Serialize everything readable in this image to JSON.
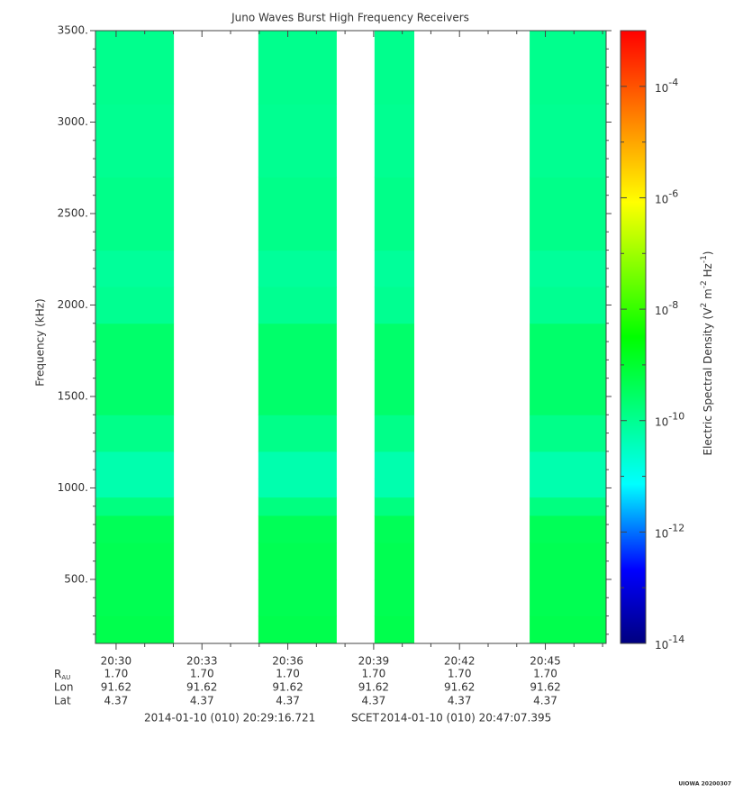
{
  "chart_data": {
    "type": "spectrogram",
    "title": "Juno Waves Burst High Frequency Receivers",
    "ylabel": "Frequency (kHz)",
    "zlabel": "Electric Spectral Density (V2 m-2 Hz-1)",
    "xlim": [
      1229.279,
      1247.123
    ],
    "xticks": [
      {
        "value": 1230,
        "label": "20:30"
      },
      {
        "value": 1233,
        "label": "20:33"
      },
      {
        "value": 1236,
        "label": "20:36"
      },
      {
        "value": 1239,
        "label": "20:39"
      },
      {
        "value": 1242,
        "label": "20:42"
      },
      {
        "value": 1245,
        "label": "20:45"
      }
    ],
    "xminor_ticks": [
      1231,
      1232,
      1234,
      1235,
      1237,
      1238,
      1240,
      1241,
      1243,
      1244,
      1246,
      1247
    ],
    "ylim": [
      150,
      3500
    ],
    "yticks": [
      {
        "value": 500,
        "label": "500."
      },
      {
        "value": 1000,
        "label": "1000."
      },
      {
        "value": 1500,
        "label": "1500."
      },
      {
        "value": 2000,
        "label": "2000."
      },
      {
        "value": 2500,
        "label": "2500."
      },
      {
        "value": 3000,
        "label": "3000."
      },
      {
        "value": 3500,
        "label": "3500."
      }
    ],
    "yminor_ticks": [
      200,
      300,
      400,
      600,
      700,
      800,
      900,
      1100,
      1200,
      1300,
      1400,
      1600,
      1700,
      1800,
      1900,
      2100,
      2200,
      2300,
      2400,
      2600,
      2700,
      2800,
      2900,
      3100,
      3200,
      3300,
      3400
    ],
    "zscale": "log",
    "zlim": [
      1e-14,
      0.001
    ],
    "zticks": [
      {
        "value": 1e-14,
        "label": "10-14"
      },
      {
        "value": 1e-12,
        "label": "10-12"
      },
      {
        "value": 1e-10,
        "label": "10-10"
      },
      {
        "value": 1e-08,
        "label": "10-8"
      },
      {
        "value": 1e-06,
        "label": "10-6"
      },
      {
        "value": 0.0001,
        "label": "10-4"
      }
    ],
    "zminor_ticks": [
      1e-13,
      1e-11,
      1e-09,
      1e-07,
      1e-05,
      0.001
    ],
    "colorscale": [
      [
        0,
        "#00007f"
      ],
      [
        0.12,
        "#0000ff"
      ],
      [
        0.26,
        "#00ffff"
      ],
      [
        0.5,
        "#00ff00"
      ],
      [
        0.72,
        "#ffff00"
      ],
      [
        1,
        "#ff0000"
      ]
    ],
    "segments": [
      [
        1229.279,
        1232.02
      ],
      [
        1234.97,
        1237.71
      ],
      [
        1239.03,
        1240.42
      ],
      [
        1244.45,
        1247.123
      ]
    ],
    "bins": [
      150,
      300,
      500,
      700,
      850,
      950,
      1050,
      1200,
      1400,
      1700,
      1900,
      2100,
      2300,
      2700,
      3100,
      3500
    ],
    "z": [
      5e-10,
      4.5e-10,
      4.5e-10,
      4e-10,
      1.5e-10,
      5e-11,
      5e-11,
      1.2e-10,
      2.5e-10,
      2.5e-10,
      1e-10,
      8e-11,
      1.2e-10,
      1e-10,
      1.1e-10
    ],
    "ephemeris": [
      {
        "label": "RAU",
        "values": [
          "1.70",
          "1.70",
          "1.70",
          "1.70",
          "1.70",
          "1.70"
        ]
      },
      {
        "label": "Lon",
        "values": [
          "91.62",
          "91.62",
          "91.62",
          "91.62",
          "91.62",
          "91.62"
        ]
      },
      {
        "label": "Lat",
        "values": [
          "4.37",
          "4.37",
          "4.37",
          "4.37",
          "4.37",
          "4.37"
        ]
      }
    ],
    "time_start": "2014-01-10 (010) 20:29:16.721",
    "time_system": "SCET",
    "time_end": "2014-01-10 (010) 20:47:07.395",
    "footer": "UIOWA 20200307"
  }
}
